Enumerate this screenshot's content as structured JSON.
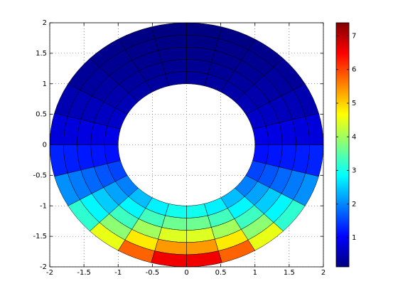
{
  "chart_data": {
    "type": "annulus-mesh",
    "r_edges": [
      1,
      1.2,
      1.4,
      1.6,
      1.8,
      2
    ],
    "theta_edges": [
      0,
      15,
      30,
      45,
      60,
      75,
      90,
      105,
      120,
      135,
      150,
      165,
      180,
      195,
      210,
      225,
      240,
      255,
      270,
      285,
      300,
      315,
      330,
      345,
      360
    ],
    "values": [
      [
        0.866,
        0.656,
        0.512,
        0.418,
        0.362,
        0.336,
        0.336,
        0.362,
        0.418,
        0.512,
        0.656,
        0.866,
        1.154,
        1.523,
        1.954,
        2.393,
        2.763,
        2.975,
        2.975,
        2.763,
        2.393,
        1.954,
        1.523,
        1.154
      ],
      [
        0.844,
        0.608,
        0.453,
        0.357,
        0.301,
        0.276,
        0.276,
        0.301,
        0.357,
        0.453,
        0.608,
        0.844,
        1.185,
        1.645,
        2.207,
        2.805,
        3.324,
        3.628,
        3.628,
        3.324,
        2.805,
        2.207,
        1.645,
        1.185
      ],
      [
        0.822,
        0.563,
        0.401,
        0.304,
        0.25,
        0.226,
        0.226,
        0.25,
        0.304,
        0.401,
        0.563,
        0.822,
        1.216,
        1.776,
        2.492,
        3.287,
        3.998,
        4.424,
        4.424,
        3.998,
        3.287,
        2.492,
        1.776,
        1.216
      ],
      [
        0.801,
        0.522,
        0.355,
        0.26,
        0.208,
        0.185,
        0.185,
        0.208,
        0.26,
        0.355,
        0.522,
        0.801,
        1.248,
        1.917,
        2.815,
        3.853,
        4.81,
        5.395,
        5.395,
        4.81,
        3.853,
        2.815,
        1.917,
        1.248
      ],
      [
        0.78,
        0.483,
        0.314,
        0.221,
        0.173,
        0.152,
        0.152,
        0.173,
        0.221,
        0.314,
        0.483,
        0.78,
        1.281,
        2.069,
        3.18,
        4.515,
        5.786,
        6.579,
        6.579,
        5.786,
        4.515,
        3.18,
        2.069,
        1.281
      ]
    ],
    "xlim": [
      -2,
      2
    ],
    "ylim": [
      -2,
      2
    ],
    "xticks": [
      -2,
      -1.5,
      -1,
      -0.5,
      0,
      0.5,
      1,
      1.5,
      2
    ],
    "yticks": [
      -2,
      -1.5,
      -1,
      -0.5,
      0,
      0.5,
      1,
      1.5,
      2
    ],
    "grid": true,
    "colormap": "jet",
    "clim": [
      0.135,
      7.39
    ],
    "cticks": [
      1,
      2,
      3,
      4,
      5,
      6,
      7
    ]
  }
}
